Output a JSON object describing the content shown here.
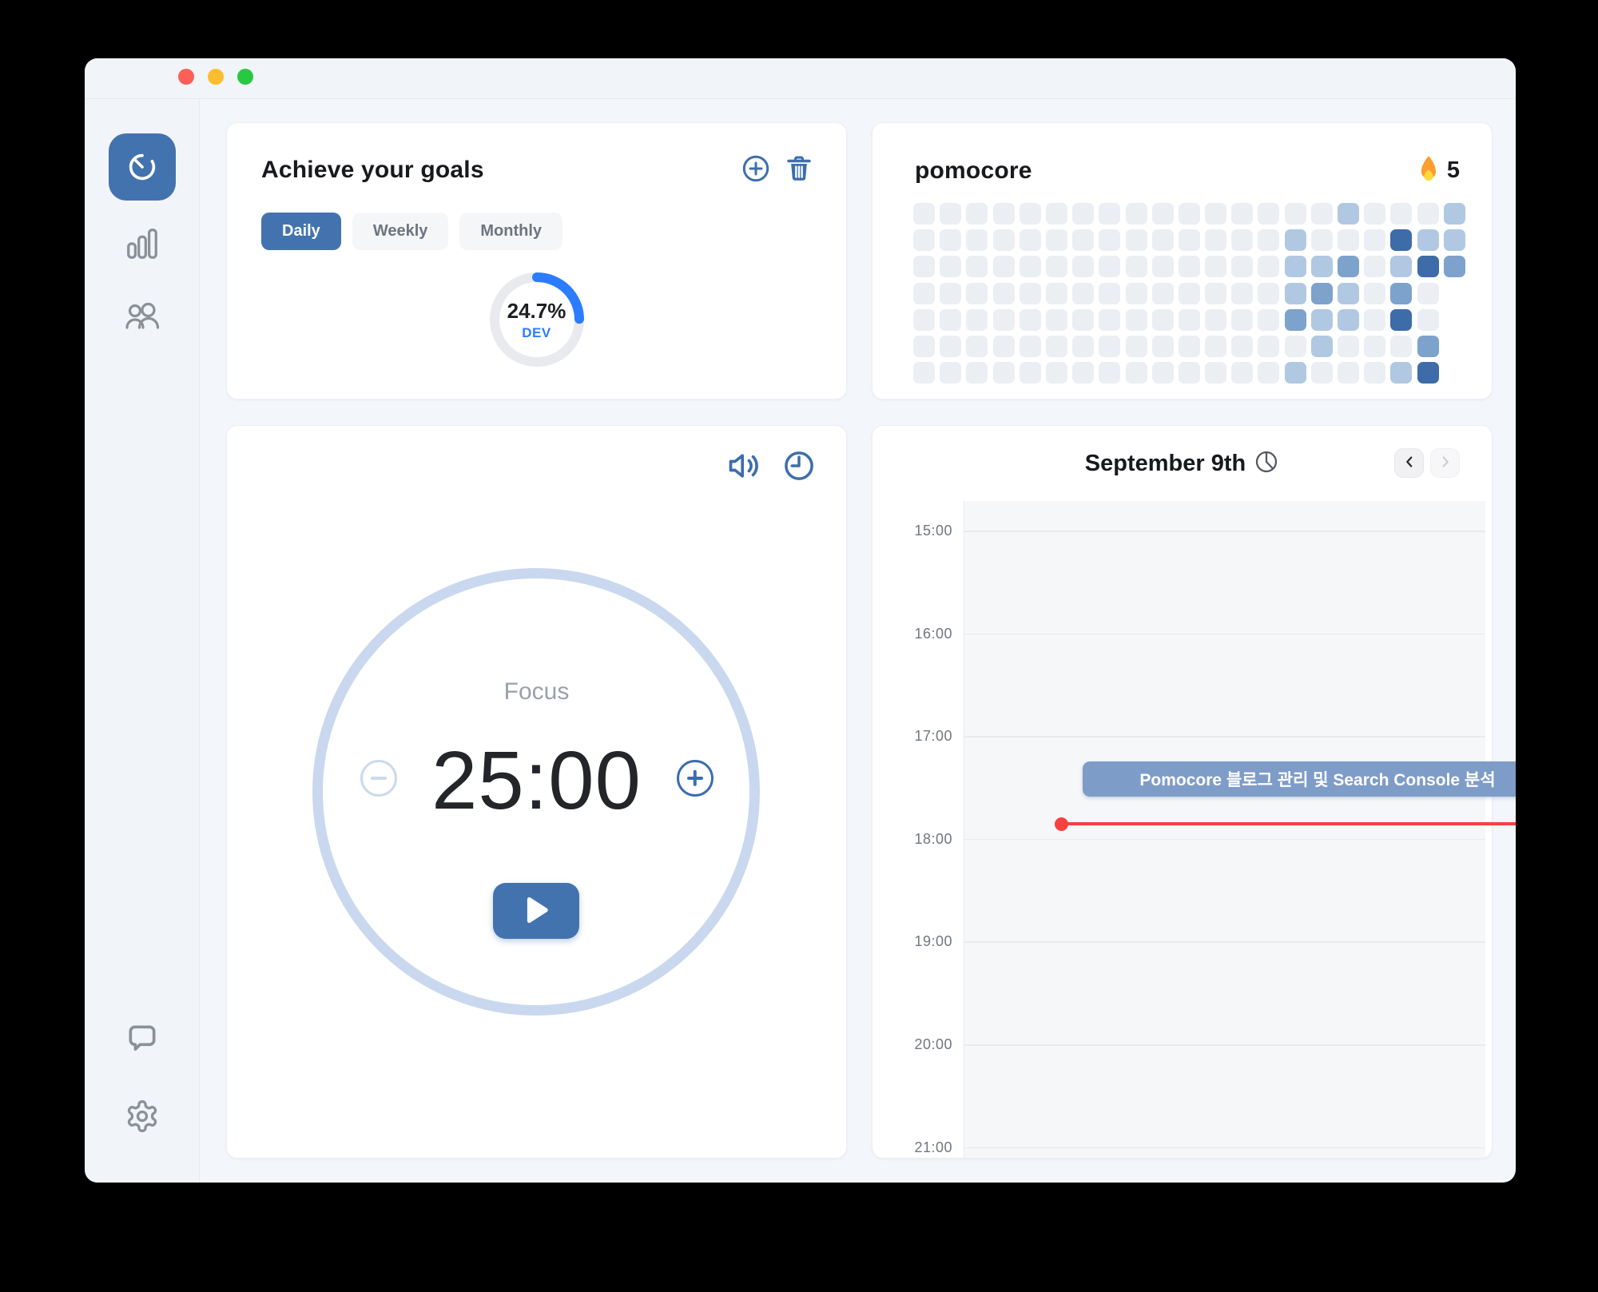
{
  "colors": {
    "accent_blue": "#4373af",
    "bright_blue": "#2b7cff",
    "icon_blue": "#3c6fae",
    "event_blue": "#7e9cc8",
    "now_red": "#f54141",
    "heatmap_levels": [
      "#ebeef3",
      "#b1c8e2",
      "#7da2cc",
      "#3d6ca8"
    ]
  },
  "sidebar": {
    "items": [
      {
        "id": "timer",
        "icon": "stopwatch-icon",
        "active": true
      },
      {
        "id": "stats",
        "icon": "bar-chart-icon",
        "active": false
      },
      {
        "id": "friends",
        "icon": "people-icon",
        "active": false
      }
    ],
    "bottom_items": [
      {
        "id": "feedback",
        "icon": "chat-bubble-icon"
      },
      {
        "id": "settings",
        "icon": "gear-icon"
      }
    ]
  },
  "goals_card": {
    "title": "Achieve your goals",
    "actions": {
      "add": "add-goal",
      "delete": "delete-goal"
    },
    "tabs": [
      {
        "label": "Daily",
        "active": true
      },
      {
        "label": "Weekly",
        "active": false
      },
      {
        "label": "Monthly",
        "active": false
      }
    ],
    "progress": {
      "percent": "24.7%",
      "value": 24.7,
      "label": "DEV"
    }
  },
  "streak_card": {
    "title": "pomocore",
    "streak_icon": "fire-icon",
    "streak_count": "5",
    "heatmap": {
      "rows": 7,
      "columns": 21,
      "legend": "0=none 1=light 2=medium 3=dark, null=no cell (future day)",
      "cells": [
        [
          0,
          0,
          0,
          0,
          0,
          0,
          0,
          0,
          0,
          0,
          0,
          0,
          0,
          0,
          0,
          0,
          1,
          0,
          0,
          0,
          1
        ],
        [
          0,
          0,
          0,
          0,
          0,
          0,
          0,
          0,
          0,
          0,
          0,
          0,
          0,
          0,
          1,
          0,
          0,
          0,
          3,
          1,
          1
        ],
        [
          0,
          0,
          0,
          0,
          0,
          0,
          0,
          0,
          0,
          0,
          0,
          0,
          0,
          0,
          1,
          1,
          2,
          0,
          1,
          3,
          2
        ],
        [
          0,
          0,
          0,
          0,
          0,
          0,
          0,
          0,
          0,
          0,
          0,
          0,
          0,
          0,
          1,
          2,
          1,
          0,
          2,
          0,
          null
        ],
        [
          0,
          0,
          0,
          0,
          0,
          0,
          0,
          0,
          0,
          0,
          0,
          0,
          0,
          0,
          2,
          1,
          1,
          0,
          3,
          0,
          null
        ],
        [
          0,
          0,
          0,
          0,
          0,
          0,
          0,
          0,
          0,
          0,
          0,
          0,
          0,
          0,
          0,
          1,
          0,
          0,
          0,
          2,
          null
        ],
        [
          0,
          0,
          0,
          0,
          0,
          0,
          0,
          0,
          0,
          0,
          0,
          0,
          0,
          0,
          1,
          0,
          0,
          0,
          1,
          3,
          null
        ]
      ]
    }
  },
  "timer_card": {
    "mode_label": "Focus",
    "time": "25:00",
    "controls": [
      "sound",
      "schedule",
      "decrease",
      "increase",
      "play"
    ]
  },
  "schedule_card": {
    "title": "September 9th",
    "title_icon": "pie-clock-icon",
    "nav": {
      "prev": "previous-day",
      "next": "next-day"
    },
    "hours": [
      "15:00",
      "16:00",
      "17:00",
      "18:00",
      "19:00",
      "20:00",
      "21:00"
    ],
    "event": {
      "label": "Pomocore 블로그 관리 및 Search Console 분석"
    },
    "now_indicator": true
  }
}
